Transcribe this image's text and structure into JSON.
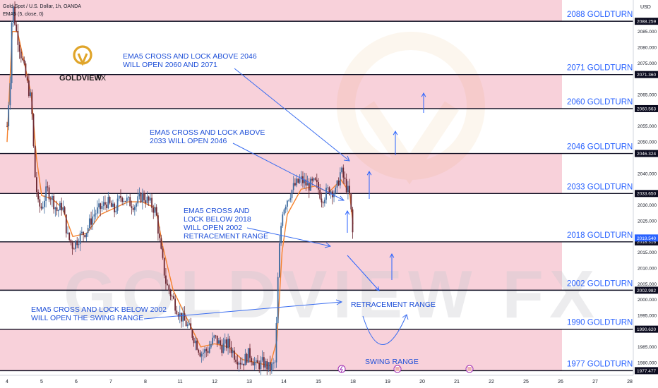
{
  "header": {
    "symbol": "Gold Spot / U.S. Dollar, 1h, OANDA",
    "indicator": "EMA5 (5, close, 0)",
    "currency": "USD"
  },
  "brand": {
    "logo_text": "GOLDVIEW",
    "logo_suffix": "FX",
    "watermark": "GOLDVIEW FX"
  },
  "colors": {
    "zone_fill": "#f7c9d4",
    "line_color": "#0b0b1f",
    "annotation_color": "#2962ff",
    "candle_up": "#3d6a9e",
    "candle_down": "#6b2732",
    "ema_color": "#f5822d",
    "logo_color": "#e0a52a"
  },
  "chart_data": {
    "type": "candlestick",
    "ylim": [
      1976,
      2095
    ],
    "y_ticks": [
      1980,
      1985,
      1990,
      1995,
      2000,
      2005,
      2010,
      2015,
      2020,
      2025,
      2030,
      2035,
      2040,
      2045,
      2050,
      2055,
      2060,
      2065,
      2070,
      2075,
      2080,
      2085,
      2090
    ],
    "x_ticks": [
      {
        "label": "4",
        "day": 4
      },
      {
        "label": "5",
        "day": 5
      },
      {
        "label": "6",
        "day": 6
      },
      {
        "label": "7",
        "day": 7
      },
      {
        "label": "8",
        "day": 8
      },
      {
        "label": "11",
        "day": 9
      },
      {
        "label": "12",
        "day": 10
      },
      {
        "label": "13",
        "day": 11
      },
      {
        "label": "14",
        "day": 12
      },
      {
        "label": "15",
        "day": 13
      },
      {
        "label": "18",
        "day": 14
      },
      {
        "label": "19",
        "day": 15
      },
      {
        "label": "20",
        "day": 16
      },
      {
        "label": "21",
        "day": 17
      },
      {
        "label": "22",
        "day": 18
      },
      {
        "label": "25",
        "day": 19
      },
      {
        "label": "26",
        "day": 20
      },
      {
        "label": "27",
        "day": 21
      },
      {
        "label": "28",
        "day": 22
      }
    ],
    "levels": [
      {
        "value": 2088.259,
        "price_label": "2088.259",
        "name": "2088 GOLDTURN"
      },
      {
        "value": 2071.36,
        "price_label": "2071.360",
        "name": "2071 GOLDTURN"
      },
      {
        "value": 2060.563,
        "price_label": "2060.563",
        "name": "2060 GOLDTURN"
      },
      {
        "value": 2046.324,
        "price_label": "2046.324",
        "name": "2046 GOLDTURN"
      },
      {
        "value": 2033.65,
        "price_label": "2033.650",
        "name": "2033 GOLDTURN"
      },
      {
        "value": 2018.316,
        "price_label": "2018.316",
        "name": "2018 GOLDTURN"
      },
      {
        "value": 2002.982,
        "price_label": "2002.982",
        "name": "2002 GOLDTURN"
      },
      {
        "value": 1990.62,
        "price_label": "1990.620",
        "name": "1990 GOLDTURN"
      },
      {
        "value": 1977.477,
        "price_label": "1977.477",
        "name": "1977 GOLDTURN"
      }
    ],
    "current_price": {
      "value": 2019.54,
      "label": "2019.540"
    },
    "zones": [
      {
        "from": 2088.259,
        "to": 2095
      },
      {
        "from": 2060.563,
        "to": 2071.36
      },
      {
        "from": 2033.65,
        "to": 2046.324
      },
      {
        "from": 2002.982,
        "to": 2018.316
      },
      {
        "from": 1977.477,
        "to": 1990.62
      }
    ],
    "price_path": [
      [
        4.0,
        2055
      ],
      [
        4.1,
        2072
      ],
      [
        4.15,
        2095
      ],
      [
        4.25,
        2086
      ],
      [
        4.4,
        2078
      ],
      [
        4.55,
        2070
      ],
      [
        4.7,
        2063
      ],
      [
        4.8,
        2040
      ],
      [
        4.9,
        2030
      ],
      [
        5.0,
        2029
      ],
      [
        5.15,
        2035
      ],
      [
        5.3,
        2032
      ],
      [
        5.45,
        2028
      ],
      [
        5.6,
        2030
      ],
      [
        5.75,
        2020
      ],
      [
        5.9,
        2017
      ],
      [
        6.1,
        2020
      ],
      [
        6.3,
        2022
      ],
      [
        6.5,
        2027
      ],
      [
        6.7,
        2029
      ],
      [
        6.9,
        2031
      ],
      [
        7.1,
        2028
      ],
      [
        7.3,
        2033
      ],
      [
        7.5,
        2031
      ],
      [
        7.7,
        2030
      ],
      [
        7.9,
        2033
      ],
      [
        8.1,
        2031
      ],
      [
        8.3,
        2028
      ],
      [
        8.45,
        2015
      ],
      [
        8.6,
        2005
      ],
      [
        8.8,
        2000
      ],
      [
        9.0,
        1995
      ],
      [
        9.2,
        1992
      ],
      [
        9.4,
        1988
      ],
      [
        9.6,
        1983
      ],
      [
        9.8,
        1984
      ],
      [
        10.0,
        1988
      ],
      [
        10.2,
        1985
      ],
      [
        10.4,
        1986
      ],
      [
        10.6,
        1982
      ],
      [
        10.8,
        1980
      ],
      [
        11.0,
        1983
      ],
      [
        11.2,
        1979
      ],
      [
        11.4,
        1980
      ],
      [
        11.6,
        1978
      ],
      [
        11.75,
        1980
      ],
      [
        11.85,
        2013
      ],
      [
        11.95,
        2028
      ],
      [
        12.1,
        2032
      ],
      [
        12.3,
        2036
      ],
      [
        12.5,
        2038
      ],
      [
        12.7,
        2036
      ],
      [
        12.9,
        2037
      ],
      [
        13.0,
        2035
      ],
      [
        13.1,
        2032
      ],
      [
        13.3,
        2035
      ],
      [
        13.5,
        2034
      ],
      [
        13.65,
        2041
      ],
      [
        13.8,
        2036
      ],
      [
        13.9,
        2033
      ],
      [
        13.95,
        2027
      ],
      [
        14.0,
        2019.54
      ]
    ],
    "ema_path": [
      [
        4.0,
        2050
      ],
      [
        4.15,
        2085
      ],
      [
        4.3,
        2085
      ],
      [
        4.5,
        2075
      ],
      [
        4.7,
        2065
      ],
      [
        4.85,
        2045
      ],
      [
        5.0,
        2033
      ],
      [
        5.3,
        2032
      ],
      [
        5.6,
        2029
      ],
      [
        5.9,
        2020
      ],
      [
        6.3,
        2021
      ],
      [
        6.7,
        2027
      ],
      [
        7.1,
        2029
      ],
      [
        7.5,
        2031
      ],
      [
        7.9,
        2031
      ],
      [
        8.3,
        2029
      ],
      [
        8.5,
        2017
      ],
      [
        8.8,
        2003
      ],
      [
        9.2,
        1994
      ],
      [
        9.6,
        1985
      ],
      [
        10.0,
        1986
      ],
      [
        10.4,
        1985
      ],
      [
        10.8,
        1981
      ],
      [
        11.2,
        1980
      ],
      [
        11.6,
        1979
      ],
      [
        11.8,
        1987
      ],
      [
        11.95,
        2015
      ],
      [
        12.1,
        2027
      ],
      [
        12.5,
        2035
      ],
      [
        12.9,
        2036
      ],
      [
        13.3,
        2034
      ],
      [
        13.65,
        2038
      ],
      [
        13.9,
        2034
      ],
      [
        14.0,
        2024
      ]
    ],
    "annotations": [
      {
        "lines": [
          "EMA5 CROSS AND LOCK ABOVE 2046",
          "WILL OPEN 2060 AND 2071"
        ]
      },
      {
        "lines": [
          "EMA5 CROSS AND LOCK ABOVE",
          "2033 WILL OPEN 2046"
        ]
      },
      {
        "lines": [
          "EMA5 CROSS AND",
          "LOCK BELOW 2018",
          "WILL OPEN 2002",
          "RETRACEMENT RANGE"
        ]
      },
      {
        "lines": [
          "EMA5 CROSS AND LOCK BELOW 2002",
          "WILL OPEN THE SWING RANGE"
        ]
      },
      {
        "lines": [
          "RETRACEMENT RANGE"
        ]
      },
      {
        "lines": [
          "SWING RANGE"
        ]
      }
    ]
  }
}
